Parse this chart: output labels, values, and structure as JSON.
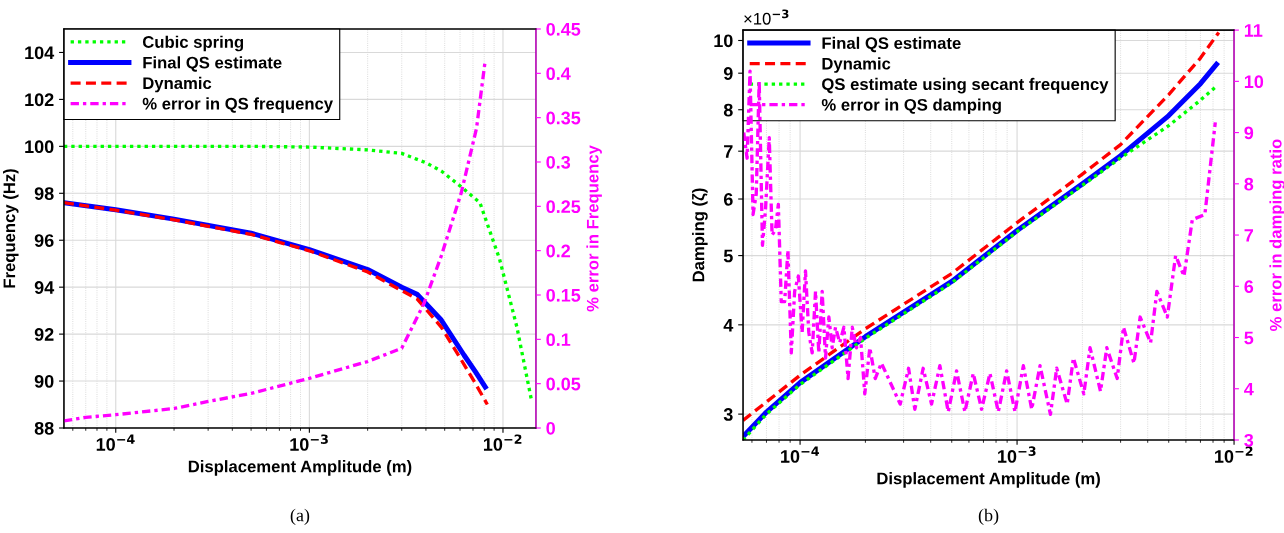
{
  "chart_data": [
    {
      "type": "line",
      "xlabel": "Displacement Amplitude (m)",
      "ylabel": "Frequency (Hz)",
      "y2label": "% error in Frequency",
      "log": "x",
      "grid": true,
      "legend": "top left",
      "xlim": [
        5.4e-05,
        0.0148
      ],
      "xticks": [
        {
          "value": 0.0001,
          "label": "10$^{−4}$"
        },
        {
          "value": 0.001,
          "label": "10$^{−3}$"
        },
        {
          "value": 0.01,
          "label": "10$^{−2}$"
        }
      ],
      "ylim": [
        88,
        105
      ],
      "yticks": [
        88,
        90,
        92,
        94,
        96,
        98,
        100,
        102,
        104
      ],
      "y2lim": [
        0,
        0.45
      ],
      "y2ticks": [
        0,
        0.05,
        0.1,
        0.15,
        0.2,
        0.25,
        0.3,
        0.35,
        0.4,
        0.45
      ],
      "annotations": [
        "(a)"
      ],
      "series": [
        {
          "name": "Cubic spring",
          "color": "#00ff00",
          "line_style": "dotted",
          "x": [
            5.4e-05,
            0.0001,
            0.0002,
            0.0005,
            0.001,
            0.002,
            0.003,
            0.004,
            0.0048,
            0.0061,
            0.0076,
            0.0096,
            0.0118,
            0.0141
          ],
          "values": [
            100,
            100,
            100,
            100,
            99.97,
            99.85,
            99.7,
            99.3,
            98.95,
            98.27,
            97.6,
            95.2,
            92.3,
            89.1
          ]
        },
        {
          "name": "Final QS estimate",
          "color": "#0000ff",
          "line_style": "solid",
          "x": [
            5.4e-05,
            0.0001,
            0.0002,
            0.0005,
            0.001,
            0.002,
            0.003,
            0.0036,
            0.0048,
            0.0063,
            0.0072,
            0.0081
          ],
          "values": [
            97.6,
            97.3,
            96.9,
            96.3,
            95.6,
            94.75,
            94.0,
            93.7,
            92.6,
            91.1,
            90.4,
            89.75
          ]
        },
        {
          "name": "Dynamic",
          "color": "#ff0000",
          "line_style": "dashed",
          "x": [
            5.4e-05,
            0.0001,
            0.0002,
            0.0005,
            0.001,
            0.002,
            0.003,
            0.0036,
            0.0048,
            0.0063,
            0.0072,
            0.0083
          ],
          "values": [
            97.6,
            97.28,
            96.87,
            96.25,
            95.55,
            94.65,
            93.85,
            93.5,
            92.3,
            90.7,
            89.9,
            89.0
          ]
        },
        {
          "name": "% error in QS frequency",
          "color": "#ff00ff",
          "line_style": "dashdot",
          "axis": "y2",
          "x": [
            5.4e-05,
            7e-05,
            0.0001,
            0.0002,
            0.0003,
            0.0005,
            0.001,
            0.002,
            0.003,
            0.0039,
            0.0048,
            0.0061,
            0.0073,
            0.0081
          ],
          "values": [
            0.008,
            0.012,
            0.015,
            0.022,
            0.03,
            0.039,
            0.056,
            0.075,
            0.09,
            0.14,
            0.194,
            0.266,
            0.338,
            0.415
          ]
        }
      ]
    },
    {
      "type": "line",
      "xlabel": "Displacement Amplitude (m)",
      "ylabel": "Damping (ζ)",
      "y2label": "% error in damping ratio",
      "log": "xy",
      "grid": true,
      "legend": "top left",
      "xlim": [
        5.46e-05,
        0.01
      ],
      "xticks": [
        {
          "value": 0.0001,
          "label": "10$^{−4}$"
        },
        {
          "value": 0.001,
          "label": "10$^{−3}$"
        },
        {
          "value": 0.01,
          "label": "10$^{−2}$"
        }
      ],
      "ylim": [
        2.76,
        10.34
      ],
      "yticks": [
        3,
        4,
        5,
        6,
        7,
        8,
        9,
        10
      ],
      "y2lim": [
        3,
        11
      ],
      "y2ticks": [
        3,
        4,
        5,
        6,
        7,
        8,
        9,
        10,
        11
      ],
      "annotations": [
        "(b)",
        "×10$^{−3}$"
      ],
      "series": [
        {
          "name": "Final QS estimate",
          "color": "#0000ff",
          "line_style": "solid",
          "x": [
            5.46e-05,
            7e-05,
            0.0001,
            0.0002,
            0.0005,
            0.001,
            0.002,
            0.003,
            0.005,
            0.007,
            0.0083
          ],
          "values": [
            2.79,
            3.02,
            3.32,
            3.85,
            4.6,
            5.42,
            6.3,
            6.9,
            7.85,
            8.7,
            9.26
          ]
        },
        {
          "name": "Dynamic",
          "color": "#ff0000",
          "line_style": "dashed",
          "x": [
            5.46e-05,
            7e-05,
            0.0001,
            0.0002,
            0.0005,
            0.001,
            0.002,
            0.003,
            0.005,
            0.007,
            0.0085
          ],
          "values": [
            2.94,
            3.12,
            3.4,
            3.95,
            4.72,
            5.56,
            6.5,
            7.15,
            8.4,
            9.45,
            10.26
          ]
        },
        {
          "name": "QS estimate using secant frequency",
          "color": "#00ff00",
          "line_style": "dotted",
          "x": [
            5.46e-05,
            7e-05,
            0.0001,
            0.0002,
            0.0005,
            0.001,
            0.002,
            0.003,
            0.005,
            0.007,
            0.0084
          ],
          "values": [
            2.76,
            3.0,
            3.3,
            3.83,
            4.58,
            5.4,
            6.27,
            6.85,
            7.6,
            8.25,
            8.66
          ]
        },
        {
          "name": "% error in QS damping",
          "color": "#ff00ff",
          "line_style": "dashdot",
          "axis": "y2",
          "x": [
            5.5e-05,
            5.7e-05,
            5.88e-05,
            6.07e-05,
            6.28e-05,
            6.48e-05,
            6.71e-05,
            6.93e-05,
            7.21e-05,
            7.43e-05,
            7.7e-05,
            7.94e-05,
            8.19e-05,
            8.49e-05,
            8.79e-05,
            9.11e-05,
            9.44e-05,
            9.82e-05,
            0.0001022,
            0.0001059,
            0.0001097,
            0.0001137,
            0.0001178,
            0.000122,
            0.0001264,
            0.000131,
            0.0001357,
            0.0001406,
            0.0001457,
            0.0001523,
            0.0001592,
            0.0001664,
            0.000174,
            0.0001818,
            0.00019,
            0.0001987,
            0.0002096,
            0.000222,
            0.0002371,
            0.0002894,
            0.0003162,
            0.000338,
            0.0003692,
            0.0004035,
            0.0004409,
            0.0004817,
            0.0005263,
            0.0005747,
            0.0006283,
            0.0006864,
            0.0007499,
            0.0008195,
            0.0008953,
            0.0009781,
            0.001069,
            0.001168,
            0.001276,
            0.001425,
            0.001523,
            0.001702,
            0.001818,
            0.002031,
            0.00217,
            0.002424,
            0.002591,
            0.002894,
            0.003094,
            0.003456,
            0.003692,
            0.004125,
            0.004409,
            0.004925,
            0.005381,
            0.005878,
            0.006422,
            0.007335,
            0.008195
          ],
          "values": [
            9.0,
            8.5,
            10.2,
            7.4,
            7.8,
            10.0,
            6.8,
            7.5,
            8.9,
            7.0,
            7.1,
            7.6,
            5.7,
            5.7,
            6.7,
            4.7,
            5.9,
            6.2,
            5.1,
            6.3,
            5.1,
            4.7,
            5.9,
            4.7,
            5.9,
            4.6,
            5.4,
            4.8,
            5.2,
            4.9,
            5.2,
            4.2,
            5.2,
            4.8,
            5.0,
            3.9,
            4.8,
            4.2,
            4.5,
            3.7,
            4.4,
            3.6,
            4.4,
            3.7,
            4.45,
            3.55,
            4.35,
            3.55,
            4.3,
            3.6,
            4.3,
            3.55,
            4.35,
            3.55,
            4.45,
            3.6,
            4.45,
            3.5,
            4.4,
            3.7,
            4.6,
            3.9,
            4.8,
            3.95,
            4.8,
            4.2,
            5.2,
            4.5,
            5.4,
            4.9,
            5.9,
            5.4,
            6.6,
            6.2,
            7.3,
            7.4,
            9.2
          ]
        }
      ]
    }
  ]
}
